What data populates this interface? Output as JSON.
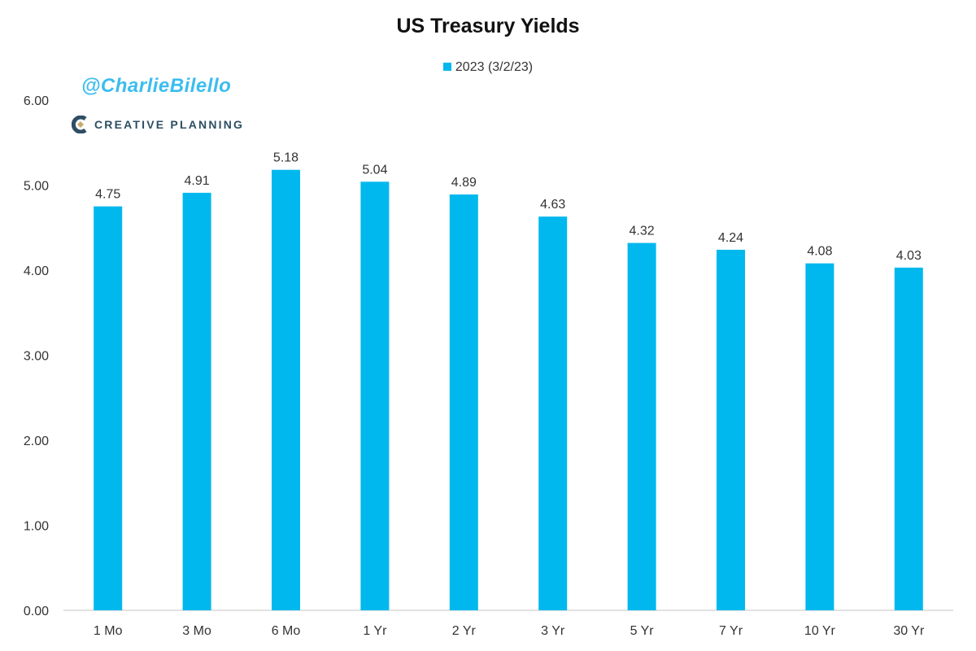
{
  "watermark": {
    "handle": "@CharlieBilello",
    "logo_text": "CREATIVE PLANNING",
    "logo_mark": "®"
  },
  "chart_data": {
    "type": "bar",
    "title": "US Treasury Yields",
    "xlabel": "",
    "ylabel": "",
    "categories": [
      "1 Mo",
      "3 Mo",
      "6 Mo",
      "1 Yr",
      "2 Yr",
      "3 Yr",
      "5 Yr",
      "7 Yr",
      "10 Yr",
      "30 Yr"
    ],
    "series": [
      {
        "name": "2023 (3/2/23)",
        "color": "#00b8ee",
        "values": [
          4.75,
          4.91,
          5.18,
          5.04,
          4.89,
          4.63,
          4.32,
          4.24,
          4.08,
          4.03
        ]
      }
    ],
    "data_labels": [
      "4.75",
      "4.91",
      "5.18",
      "5.04",
      "4.89",
      "4.63",
      "4.32",
      "4.24",
      "4.08",
      "4.03"
    ],
    "ylim": [
      0,
      6
    ],
    "yticks": [
      "0.00",
      "1.00",
      "2.00",
      "3.00",
      "4.00",
      "5.00",
      "6.00"
    ],
    "grid": false,
    "legend_position": "top-center"
  }
}
